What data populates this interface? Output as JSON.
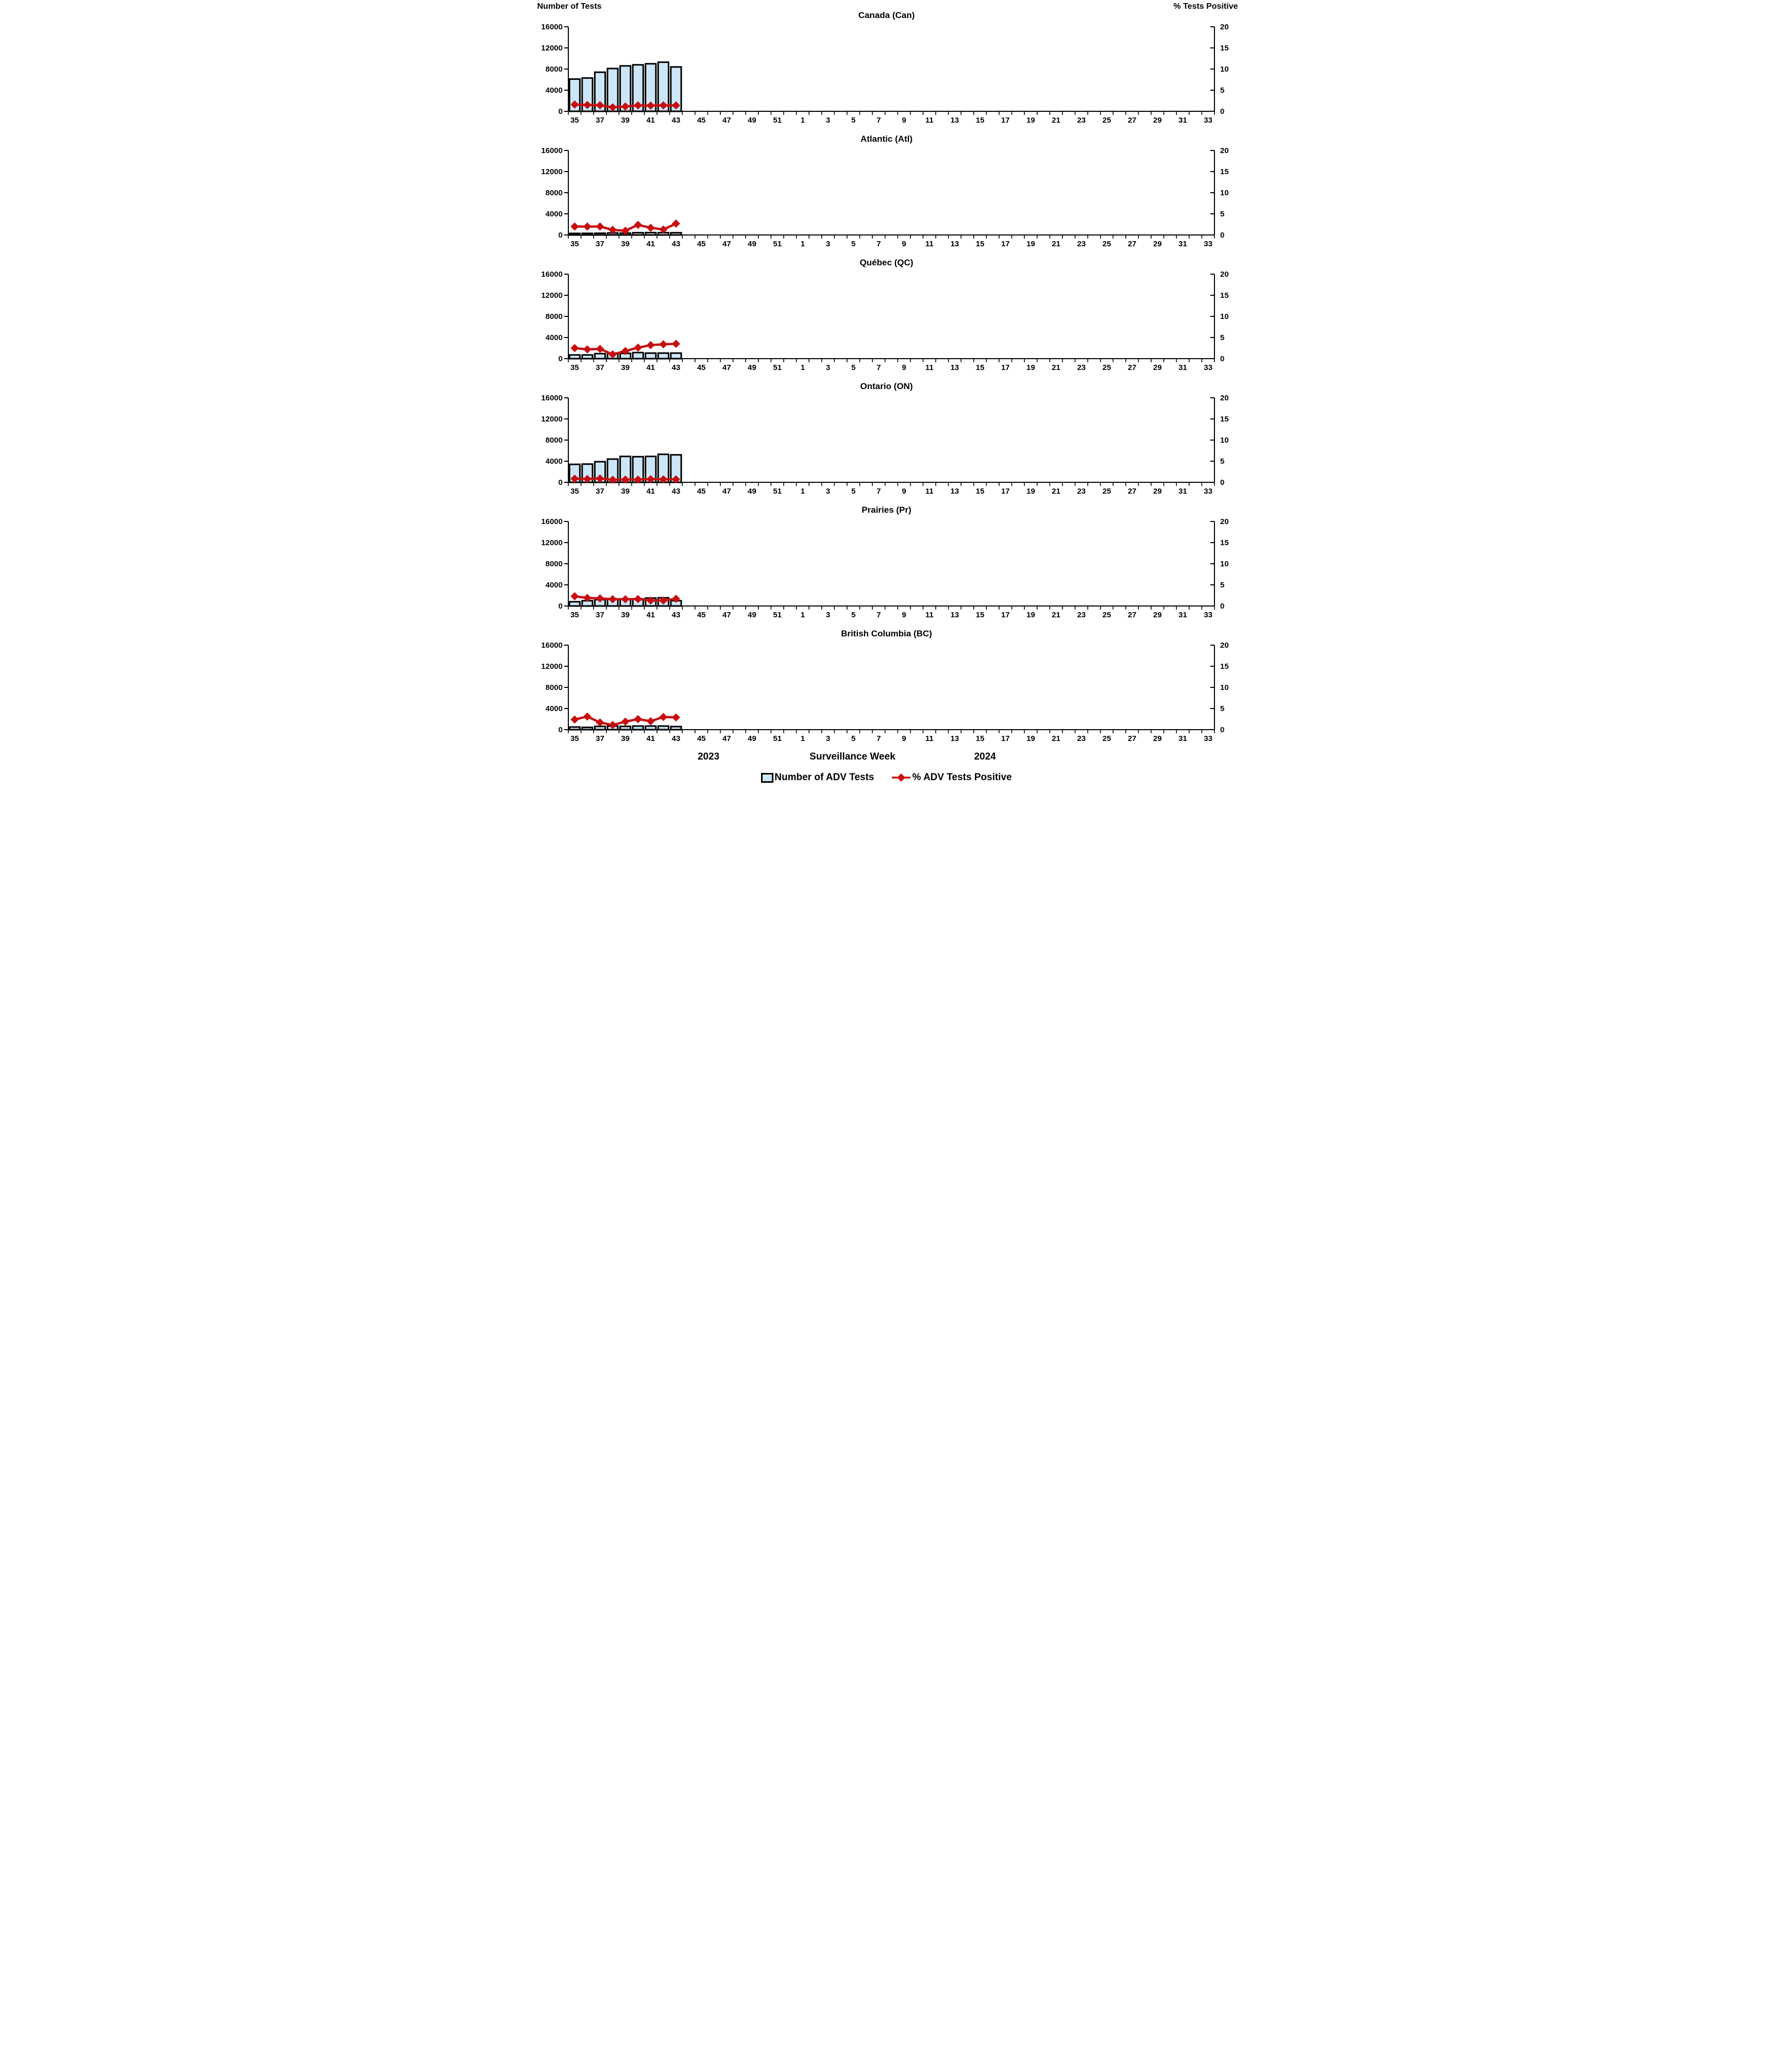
{
  "figure": {
    "left_axis_title": "Number of Tests",
    "right_axis_title": "% Tests Positive",
    "x_axis_title": "Surveillance Week",
    "year_left": "2023",
    "year_right": "2024",
    "legend": [
      {
        "label": "Number of ADV Tests",
        "marker": "bar-swatch"
      },
      {
        "label": "% ADV Tests Positive",
        "marker": "line-diamond"
      }
    ],
    "colors": {
      "bar_fill": "#CDE6F7",
      "bar_border": "#000000",
      "line": "#C80E10",
      "axis": "#000000",
      "text": "#000000"
    },
    "axes": {
      "total_week_slots": 51,
      "x_tick_labels": [
        "35",
        "37",
        "39",
        "41",
        "43",
        "45",
        "47",
        "49",
        "51",
        "1",
        "3",
        "5",
        "7",
        "9",
        "11",
        "13",
        "15",
        "17",
        "19",
        "21",
        "23",
        "25",
        "27",
        "29",
        "31",
        "33"
      ],
      "left_ticks": [
        0,
        4000,
        8000,
        12000,
        16000
      ],
      "right_ticks": [
        0,
        5,
        10,
        15,
        20
      ]
    }
  },
  "chart_data": [
    {
      "type": "bar+line",
      "title": "Canada (Can)",
      "x": [
        35,
        36,
        37,
        38,
        39,
        40,
        41,
        42,
        43
      ],
      "series": [
        {
          "name": "Number of ADV Tests",
          "axis": "left",
          "values": [
            6100,
            6300,
            7400,
            8100,
            8600,
            8800,
            9000,
            9300,
            8400
          ]
        },
        {
          "name": "% ADV Tests Positive",
          "axis": "right",
          "values": [
            1.6,
            1.5,
            1.45,
            0.95,
            1.15,
            1.4,
            1.35,
            1.4,
            1.4
          ]
        }
      ],
      "left_ylim": [
        0,
        16000
      ],
      "right_ylim": [
        0,
        20
      ]
    },
    {
      "type": "bar+line",
      "title": "Atlantic (Atl)",
      "x": [
        35,
        36,
        37,
        38,
        39,
        40,
        41,
        42,
        43
      ],
      "series": [
        {
          "name": "Number of ADV Tests",
          "axis": "left",
          "values": [
            300,
            310,
            330,
            380,
            340,
            430,
            450,
            440,
            420
          ]
        },
        {
          "name": "% ADV Tests Positive",
          "axis": "right",
          "values": [
            2.0,
            2.0,
            2.0,
            1.2,
            1.0,
            2.4,
            1.7,
            1.3,
            2.7
          ]
        }
      ],
      "left_ylim": [
        0,
        16000
      ],
      "right_ylim": [
        0,
        20
      ]
    },
    {
      "type": "bar+line",
      "title": "Québec (QC)",
      "x": [
        35,
        36,
        37,
        38,
        39,
        40,
        41,
        42,
        43
      ],
      "series": [
        {
          "name": "Number of ADV Tests",
          "axis": "left",
          "values": [
            700,
            700,
            950,
            1050,
            1000,
            1150,
            1050,
            1050,
            1050
          ]
        },
        {
          "name": "% ADV Tests Positive",
          "axis": "right",
          "values": [
            2.5,
            2.2,
            2.3,
            1.0,
            1.8,
            2.6,
            3.2,
            3.4,
            3.5
          ]
        }
      ],
      "left_ylim": [
        0,
        16000
      ],
      "right_ylim": [
        0,
        20
      ]
    },
    {
      "type": "bar+line",
      "title": "Ontario (ON)",
      "x": [
        35,
        36,
        37,
        38,
        39,
        40,
        41,
        42,
        43
      ],
      "series": [
        {
          "name": "Number of ADV Tests",
          "axis": "left",
          "values": [
            3400,
            3450,
            3900,
            4400,
            4900,
            4850,
            4900,
            5300,
            5200
          ]
        },
        {
          "name": "% ADV Tests Positive",
          "axis": "right",
          "values": [
            0.85,
            0.8,
            0.9,
            0.6,
            0.65,
            0.65,
            0.75,
            0.7,
            0.7
          ]
        }
      ],
      "left_ylim": [
        0,
        16000
      ],
      "right_ylim": [
        0,
        20
      ]
    },
    {
      "type": "bar+line",
      "title": "Prairies (Pr)",
      "x": [
        35,
        36,
        37,
        38,
        39,
        40,
        41,
        42,
        43
      ],
      "series": [
        {
          "name": "Number of ADV Tests",
          "axis": "left",
          "values": [
            800,
            1000,
            1200,
            1300,
            1300,
            1350,
            1500,
            1550,
            1000
          ]
        },
        {
          "name": "% ADV Tests Positive",
          "axis": "right",
          "values": [
            2.3,
            1.9,
            1.8,
            1.6,
            1.6,
            1.65,
            1.3,
            1.3,
            1.7
          ]
        }
      ],
      "left_ylim": [
        0,
        16000
      ],
      "right_ylim": [
        0,
        20
      ]
    },
    {
      "type": "bar+line",
      "title": "British Columbia (BC)",
      "x": [
        35,
        36,
        37,
        38,
        39,
        40,
        41,
        42,
        43
      ],
      "series": [
        {
          "name": "Number of ADV Tests",
          "axis": "left",
          "values": [
            500,
            430,
            620,
            680,
            620,
            680,
            680,
            680,
            580
          ]
        },
        {
          "name": "% ADV Tests Positive",
          "axis": "right",
          "values": [
            2.4,
            3.1,
            1.7,
            1.1,
            1.9,
            2.5,
            2.0,
            3.0,
            2.9
          ]
        }
      ],
      "left_ylim": [
        0,
        16000
      ],
      "right_ylim": [
        0,
        20
      ]
    }
  ]
}
